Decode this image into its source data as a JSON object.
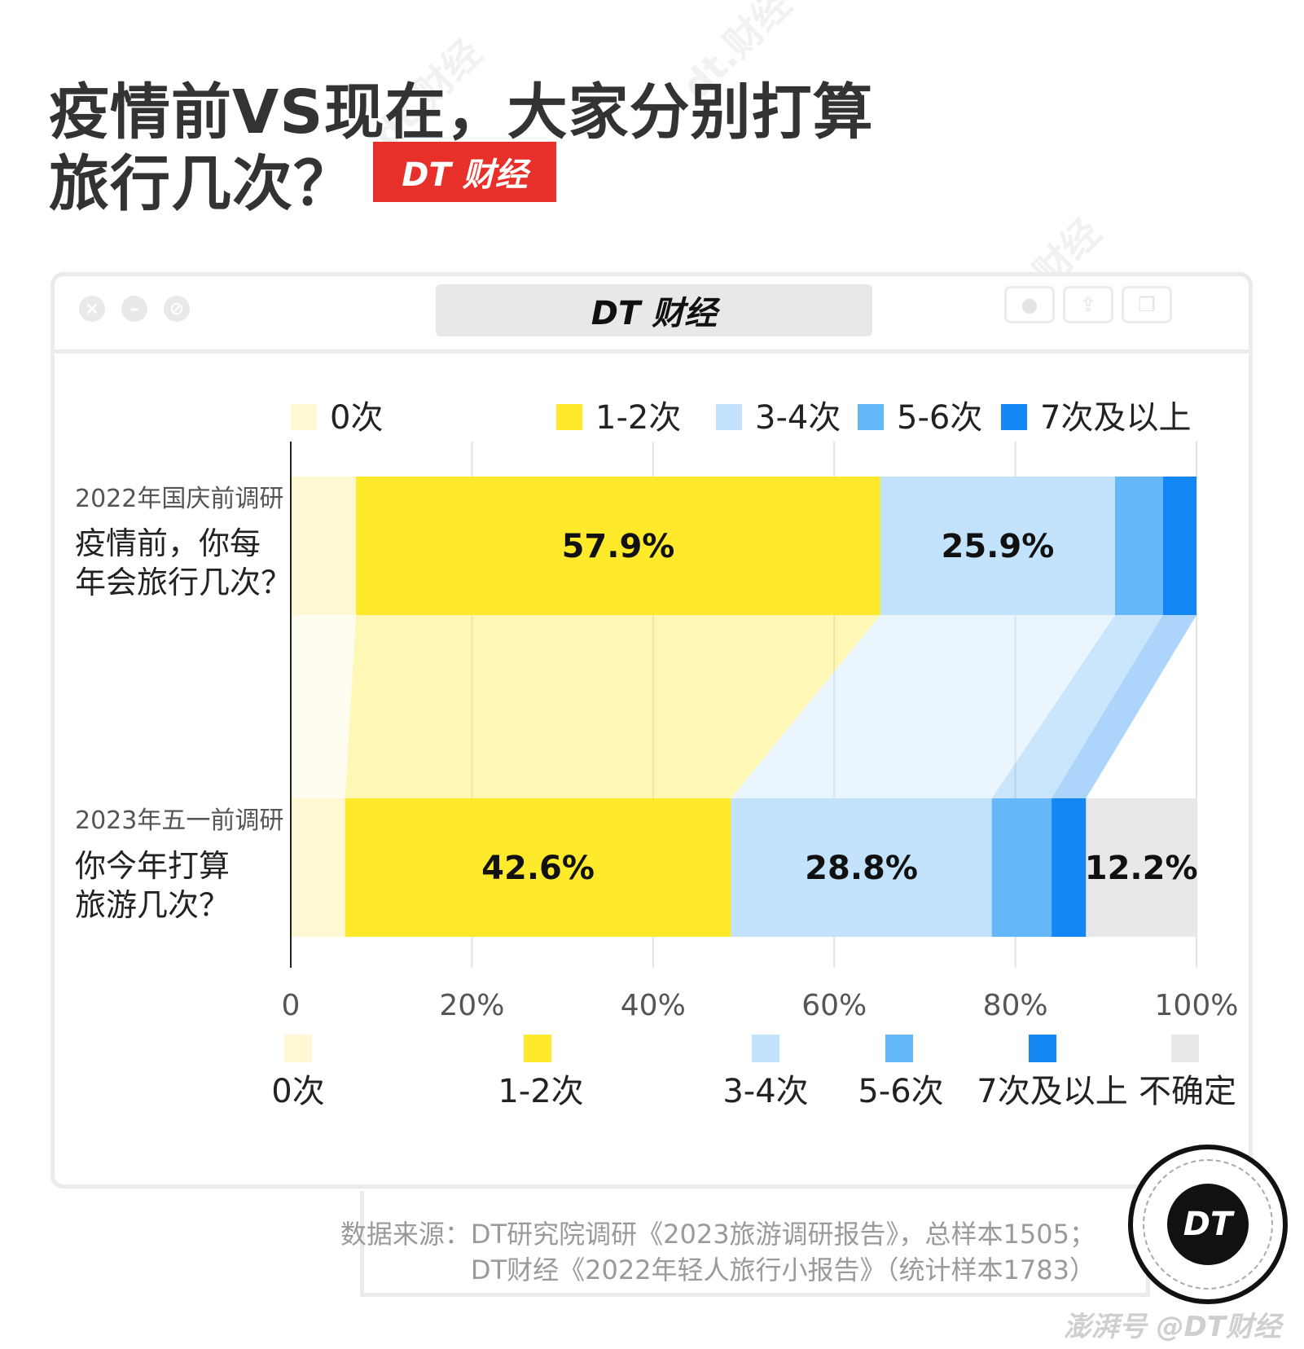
{
  "title": {
    "line1": "疫情前VS现在，大家分别打算",
    "line2": "旅行几次？"
  },
  "brand": {
    "badge": "DT 财经",
    "window_brand": "DT 财经",
    "circle_logo": "DT",
    "credit": "澎湃号 @DT财经",
    "watermark": "dt.财经"
  },
  "window": {
    "dots": [
      "close-icon",
      "minimize-icon",
      "block-icon"
    ],
    "buttons": [
      "record-icon",
      "share-icon",
      "copy-icon"
    ]
  },
  "colors": {
    "title": "#333333",
    "brand_red": "#e8302b",
    "c0": "#fff8d2",
    "c12": "#ffe92b",
    "c34": "#c2e3fb",
    "c56": "#64b7f8",
    "c7": "#1387f4",
    "uncertain": "#e8e8e8"
  },
  "chart_data": {
    "type": "bar",
    "orientation": "horizontal",
    "stacked": true,
    "xlim": [
      0,
      100
    ],
    "xticks": [
      "0",
      "20%",
      "40%",
      "60%",
      "80%",
      "100%"
    ],
    "grid": true,
    "categories": [
      {
        "survey": "2022年国庆前调研",
        "question": "疫情前，你每年会旅行几次？"
      },
      {
        "survey": "2023年五一前调研",
        "question": "你今年打算旅游几次？"
      }
    ],
    "series": [
      {
        "name": "0次",
        "color": "#fff8d2",
        "values": [
          7.2,
          6.0
        ]
      },
      {
        "name": "1-2次",
        "color": "#ffe92b",
        "values": [
          57.9,
          42.6
        ]
      },
      {
        "name": "3-4次",
        "color": "#c2e3fb",
        "values": [
          25.9,
          28.8
        ]
      },
      {
        "name": "5-6次",
        "color": "#64b7f8",
        "values": [
          5.3,
          6.6
        ]
      },
      {
        "name": "7次及以上",
        "color": "#1387f4",
        "values": [
          3.7,
          3.8
        ]
      },
      {
        "name": "不确定",
        "color": "#e8e8e8",
        "values": [
          0,
          12.2
        ]
      }
    ],
    "data_labels": [
      {
        "bar": 0,
        "series": 1,
        "text": "57.9%"
      },
      {
        "bar": 0,
        "series": 2,
        "text": "25.9%"
      },
      {
        "bar": 1,
        "series": 1,
        "text": "42.6%"
      },
      {
        "bar": 1,
        "series": 2,
        "text": "28.8%"
      },
      {
        "bar": 1,
        "series": 5,
        "text": "12.2%"
      }
    ],
    "top_legend": [
      "0次",
      "1-2次",
      "3-4次",
      "5-6次",
      "7次及以上"
    ],
    "bottom_legend": [
      "0次",
      "1-2次",
      "3-4次",
      "5-6次",
      "7次及以上",
      "不确定"
    ],
    "legend_placement": "top and bottom"
  },
  "source": {
    "line1": "数据来源：DT研究院调研《2023旅游调研报告》，总样本1505；",
    "line2": "DT财经《2022年轻人旅行小报告》（统计样本1783）"
  }
}
